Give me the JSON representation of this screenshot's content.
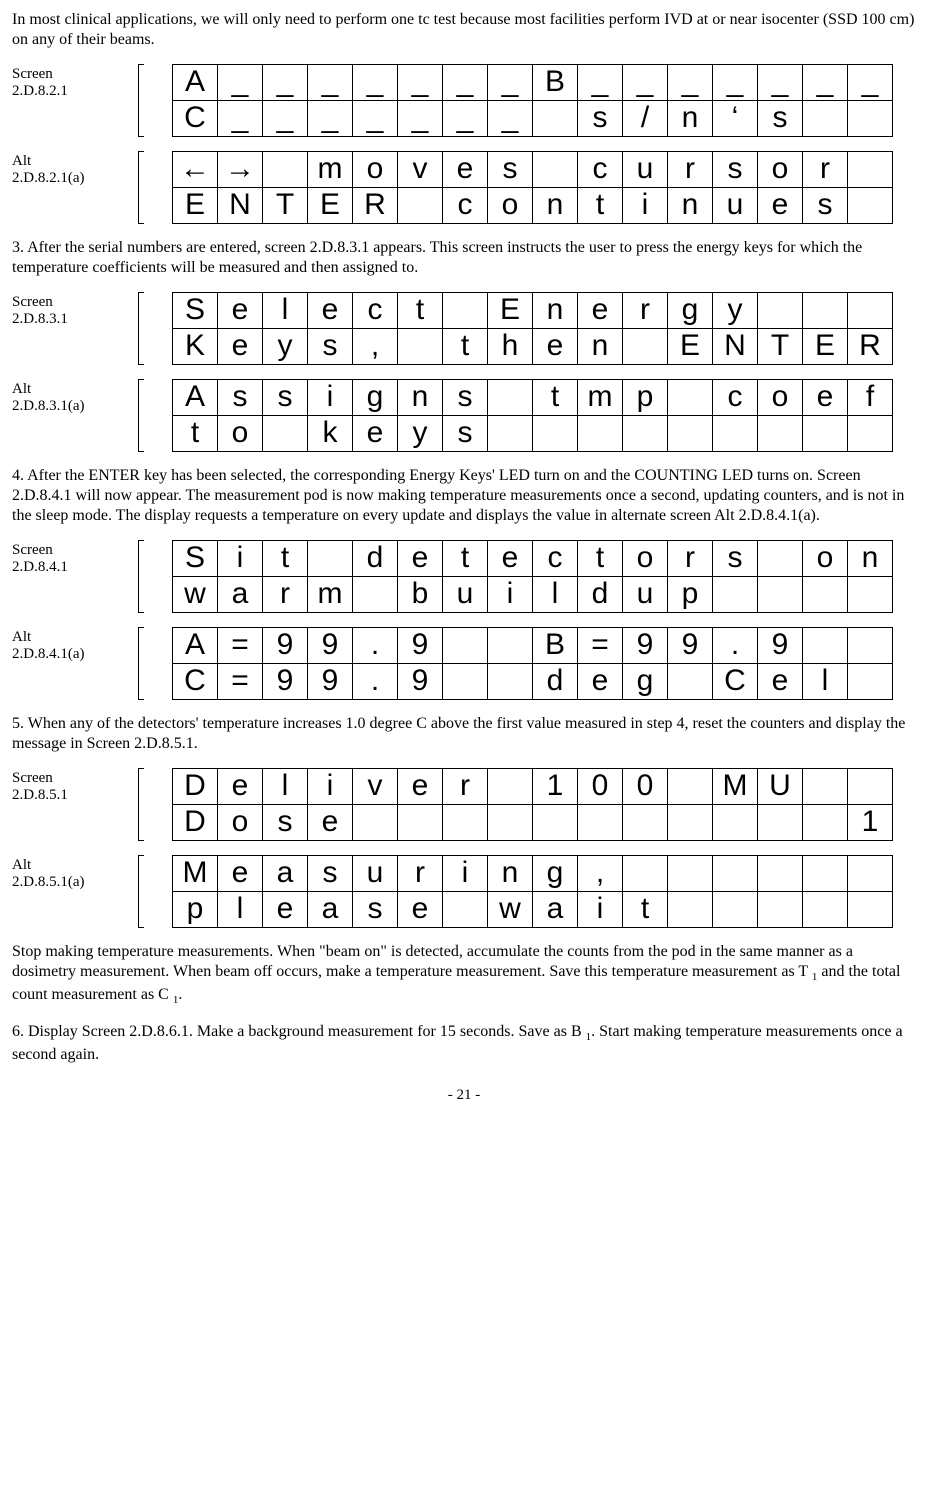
{
  "paragraphs": {
    "p0": "In most clinical applications, we will only need to perform one tc test because most facilities perform IVD at or near isocenter (SSD 100 cm) on any of their beams.",
    "p3": "3. After the serial numbers are entered, screen 2.D.8.3.1 appears. This screen instructs the user to press the energy keys for which the temperature coefficients will be measured and then assigned to.",
    "p4": "4. After the ENTER key has been selected, the corresponding Energy Keys' LED turn on and the COUNTING LED turns on. Screen 2.D.8.4.1 will now appear. The measurement pod is now making temperature measurements once a second, updating counters, and is not in the sleep mode. The display requests a temperature on every update and displays the value in alternate screen Alt 2.D.8.4.1(a).",
    "p5": "5. When any of the detectors' temperature increases 1.0 degree C above the first value measured in step 4, reset the counters and display the message in Screen 2.D.8.5.1.",
    "p_stop_a": "Stop making temperature measurements. When \"beam on\" is detected, accumulate the counts from the pod in the same manner as a dosimetry measurement. When beam off occurs, make a temperature measurement. Save this temperature measurement as T ",
    "p_stop_b": " and the total count measurement as C ",
    "p6_a": "6. Display Screen 2.D.8.6.1. Make a background measurement for 15 seconds. Save as B ",
    "p6_b": ".  Start making temperature measurements once a second again."
  },
  "subscript_one": "1",
  "period": ".",
  "screens": {
    "s1": {
      "label": "Screen\n2.D.8.2.1",
      "row1": [
        "A",
        "_",
        "_",
        "_",
        "_",
        "_",
        "_",
        "_",
        "B",
        "_",
        "_",
        "_",
        "_",
        "_",
        "_",
        "_"
      ],
      "row2": [
        "C",
        "_",
        "_",
        "_",
        "_",
        "_",
        "_",
        "_",
        "",
        "s",
        "/",
        "n",
        "‘",
        "s",
        "",
        ""
      ]
    },
    "s1a": {
      "label": "Alt\n2.D.8.2.1(a)",
      "row1": [
        "←",
        "→",
        "",
        "m",
        "o",
        "v",
        "e",
        "s",
        "",
        "c",
        "u",
        "r",
        "s",
        "o",
        "r",
        ""
      ],
      "row2": [
        "E",
        "N",
        "T",
        "E",
        "R",
        "",
        "c",
        "o",
        "n",
        "t",
        "i",
        "n",
        "u",
        "e",
        "s",
        ""
      ]
    },
    "s2": {
      "label": "Screen\n2.D.8.3.1",
      "row1": [
        "S",
        "e",
        "l",
        "e",
        "c",
        "t",
        "",
        "E",
        "n",
        "e",
        "r",
        "g",
        "y",
        "",
        "",
        ""
      ],
      "row2": [
        "K",
        "e",
        "y",
        "s",
        ",",
        "",
        "t",
        "h",
        "e",
        "n",
        "",
        "E",
        "N",
        "T",
        "E",
        "R"
      ]
    },
    "s2a": {
      "label": "Alt\n2.D.8.3.1(a)",
      "row1": [
        "A",
        "s",
        "s",
        "i",
        "g",
        "n",
        "s",
        "",
        "t",
        "m",
        "p",
        "",
        "c",
        "o",
        "e",
        "f"
      ],
      "row2": [
        "t",
        "o",
        "",
        "k",
        "e",
        "y",
        "s",
        "",
        "",
        "",
        "",
        "",
        "",
        "",
        "",
        ""
      ]
    },
    "s3": {
      "label": "Screen\n2.D.8.4.1",
      "row1": [
        "S",
        "i",
        "t",
        "",
        "d",
        "e",
        "t",
        "e",
        "c",
        "t",
        "o",
        "r",
        "s",
        "",
        "o",
        "n"
      ],
      "row2": [
        "w",
        "a",
        "r",
        "m",
        "",
        "b",
        "u",
        "i",
        "l",
        "d",
        "u",
        "p",
        "",
        "",
        "",
        ""
      ]
    },
    "s3a": {
      "label": "Alt\n2.D.8.4.1(a)",
      "row1": [
        "A",
        "=",
        "9",
        "9",
        ".",
        "9",
        "",
        "",
        "B",
        "=",
        "9",
        "9",
        ".",
        "9",
        "",
        ""
      ],
      "row2": [
        "C",
        "=",
        "9",
        "9",
        ".",
        "9",
        "",
        "",
        "d",
        "e",
        "g",
        "",
        "C",
        "e",
        "l",
        ""
      ]
    },
    "s4": {
      "label": "Screen\n2.D.8.5.1",
      "row1": [
        "D",
        "e",
        "l",
        "i",
        "v",
        "e",
        "r",
        "",
        "1",
        "0",
        "0",
        "",
        "M",
        "U",
        "",
        ""
      ],
      "row2": [
        "D",
        "o",
        "s",
        "e",
        "",
        "",
        "",
        "",
        "",
        "",
        "",
        "",
        "",
        "",
        "",
        "1"
      ]
    },
    "s4a": {
      "label": "Alt\n2.D.8.5.1(a)",
      "row1": [
        "M",
        "e",
        "a",
        "s",
        "u",
        "r",
        "i",
        "n",
        "g",
        ",",
        "",
        "",
        "",
        "",
        "",
        ""
      ],
      "row2": [
        "p",
        "l",
        "e",
        "a",
        "s",
        "e",
        "",
        "w",
        "a",
        "i",
        "t",
        "",
        "",
        "",
        "",
        ""
      ]
    }
  },
  "page_number": "- 21 -"
}
